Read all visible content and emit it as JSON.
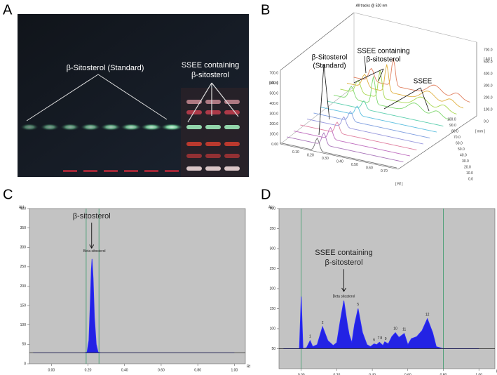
{
  "panel_labels": [
    "A",
    "B",
    "C",
    "D"
  ],
  "photo": {
    "standard_label": "β-Sitosterol (Standard)",
    "sample_label": [
      "SSEE containing",
      "β-sitosterol"
    ]
  },
  "plot3d": {
    "title": "All tracks @ 520 nm",
    "annotations": [
      [
        "β-Sitosterol",
        "(Standard)"
      ],
      [
        "SSEE containing",
        "β-sitosterol"
      ],
      [
        "SSEE"
      ]
    ],
    "left_ticks": [
      "700.0",
      "600.0",
      "500.0",
      "400.0",
      "300.0",
      "200.0",
      "100.0",
      "0.00"
    ],
    "left_unit": "[ AU ]",
    "right_ticks": [
      "700.0",
      "500.0",
      "400.0",
      "300.0",
      "200.0",
      "100.0",
      "0.0"
    ],
    "right_unit": "[ AU ]",
    "depth_ticks": [
      "100.0",
      "90.0",
      "80.0",
      "70.0",
      "60.0",
      "50.0",
      "40.0",
      "30.0",
      "20.0",
      "10.0",
      "0.0"
    ],
    "depth_unit": "[ mm ]",
    "rf_ticks": [
      "0.10",
      "0.20",
      "0.30",
      "0.40",
      "0.50",
      "0.60",
      "0.70"
    ],
    "rf_unit": "[ Rf ]"
  },
  "chart_data": [
    {
      "type": "line",
      "x_label": "Rf",
      "y_label": "AU",
      "color": "#1a1ae6",
      "xlim": [
        -0.12,
        1.06
      ],
      "ylim": [
        0,
        400
      ],
      "xticks": [
        {
          "value": 0,
          "label": "0.00"
        },
        {
          "value": 0.2,
          "label": "0.20"
        },
        {
          "value": 0.4,
          "label": "0.40"
        },
        {
          "value": 0.6,
          "label": "0.60"
        },
        {
          "value": 0.8,
          "label": "0.80"
        },
        {
          "value": 1,
          "label": "1.00"
        }
      ],
      "yticks": [
        0,
        50,
        100,
        150,
        200,
        250,
        300,
        350,
        400
      ],
      "window": [
        0.19,
        0.26
      ],
      "baseline": 28,
      "x": [
        -0.1,
        0.0,
        0.1,
        0.18,
        0.195,
        0.205,
        0.212,
        0.218,
        0.222,
        0.228,
        0.235,
        0.245,
        0.255,
        0.27,
        0.4,
        0.6,
        0.8,
        1.0
      ],
      "values": [
        28,
        28,
        28,
        28,
        30,
        60,
        150,
        240,
        270,
        220,
        120,
        50,
        30,
        28,
        28,
        28,
        28,
        28
      ],
      "peak_labels": [
        {
          "text": "Beta sitosterol",
          "x": 0.235,
          "y": 290
        }
      ],
      "callout": {
        "lines": [
          "β-sitosterol"
        ],
        "x": 0.22,
        "y": 380,
        "to": 298
      }
    },
    {
      "type": "line",
      "x_label": "Rf",
      "y_label": "AU",
      "color": "#1a1ae6",
      "xlim": [
        -0.125,
        1.09
      ],
      "ylim": [
        0,
        400
      ],
      "xticks": [
        {
          "value": 0,
          "label": "0.00"
        },
        {
          "value": 0.2,
          "label": "0.20"
        },
        {
          "value": 0.4,
          "label": "0.40"
        },
        {
          "value": 0.6,
          "label": "0.60"
        },
        {
          "value": 0.8,
          "label": "0.80"
        },
        {
          "value": 1,
          "label": "1.00"
        }
      ],
      "yticks": [
        50,
        100,
        150,
        200,
        250,
        300,
        350,
        400
      ],
      "window": [
        0.0,
        0.8
      ],
      "baseline": 50,
      "x": [
        -0.1,
        -0.01,
        0.0,
        0.01,
        0.03,
        0.05,
        0.065,
        0.09,
        0.12,
        0.15,
        0.18,
        0.2,
        0.22,
        0.24,
        0.26,
        0.27,
        0.285,
        0.3,
        0.32,
        0.345,
        0.37,
        0.39,
        0.41,
        0.425,
        0.44,
        0.46,
        0.47,
        0.49,
        0.51,
        0.53,
        0.55,
        0.58,
        0.6,
        0.62,
        0.65,
        0.68,
        0.71,
        0.74,
        0.76,
        0.8,
        1.0
      ],
      "values": [
        50,
        50,
        180,
        50,
        52,
        70,
        55,
        60,
        105,
        70,
        58,
        65,
        120,
        170,
        110,
        85,
        65,
        110,
        150,
        90,
        60,
        55,
        62,
        60,
        66,
        58,
        67,
        62,
        80,
        90,
        78,
        88,
        60,
        75,
        80,
        95,
        125,
        90,
        55,
        50,
        50
      ],
      "peak_labels": [
        {
          "text": "1",
          "x": 0.05,
          "y": 80
        },
        {
          "text": "2",
          "x": 0.12,
          "y": 115
        },
        {
          "text": "Beta sitosterol",
          "x": 0.24,
          "y": 180
        },
        {
          "text": "5",
          "x": 0.32,
          "y": 160
        },
        {
          "text": "6",
          "x": 0.41,
          "y": 72
        },
        {
          "text": "7",
          "x": 0.435,
          "y": 76
        },
        {
          "text": "8",
          "x": 0.45,
          "y": 76
        },
        {
          "text": "9",
          "x": 0.475,
          "y": 74
        },
        {
          "text": "10",
          "x": 0.53,
          "y": 100
        },
        {
          "text": "11",
          "x": 0.58,
          "y": 98
        },
        {
          "text": "12",
          "x": 0.71,
          "y": 135
        }
      ],
      "callout": {
        "lines": [
          "SSEE containing",
          "β-sitosterol"
        ],
        "x": 0.24,
        "y": 289,
        "to": 193
      }
    }
  ]
}
